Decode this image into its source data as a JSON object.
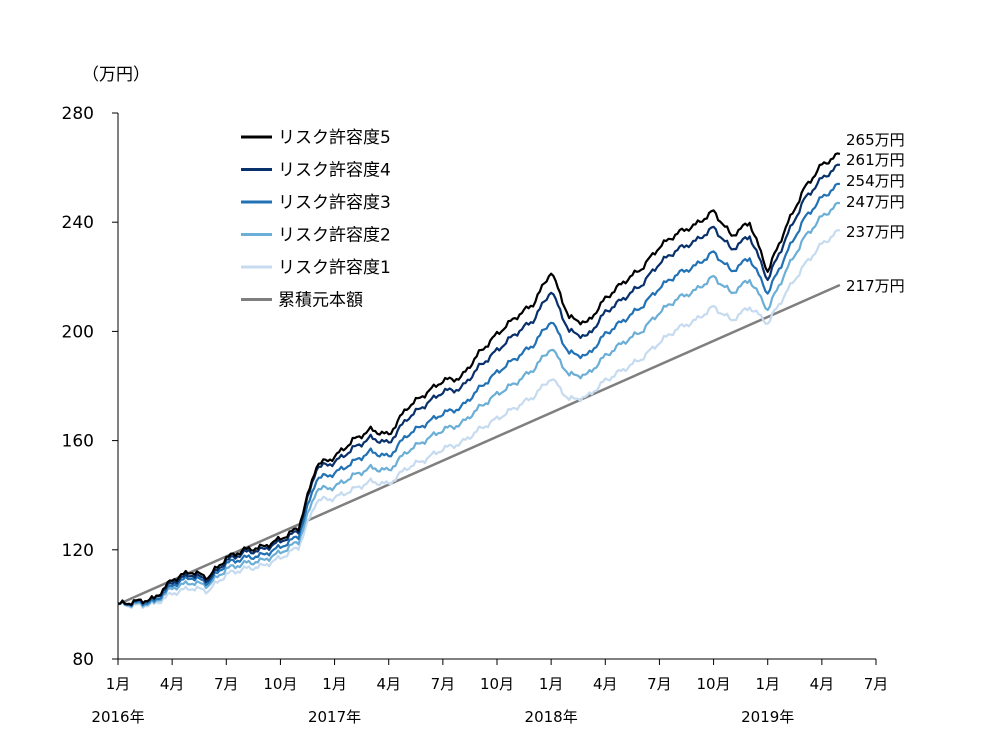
{
  "chart_data": {
    "type": "line",
    "y_unit": "（万円）",
    "ylim": [
      80,
      280
    ],
    "y_ticks": [
      80,
      120,
      160,
      200,
      240,
      280
    ],
    "x_range": [
      "2016-01",
      "2019-07"
    ],
    "x_tick_labels": [
      "1月",
      "4月",
      "7月",
      "10月",
      "1月",
      "4月",
      "7月",
      "10月",
      "1月",
      "4月",
      "7月",
      "10月",
      "1月",
      "4月",
      "7月"
    ],
    "year_labels": [
      "2016年",
      "2017年",
      "2018年",
      "2019年"
    ],
    "grid": false,
    "legend_position": "top-left",
    "series": [
      {
        "name": "リスク許容度5",
        "color": "#000000",
        "end_label": "265万円",
        "points": [
          [
            "2016-01",
            100
          ],
          [
            "2016-02",
            101
          ],
          [
            "2016-03",
            102
          ],
          [
            "2016-04",
            109
          ],
          [
            "2016-05",
            112
          ],
          [
            "2016-06",
            110
          ],
          [
            "2016-07",
            117
          ],
          [
            "2016-08",
            120
          ],
          [
            "2016-09",
            121
          ],
          [
            "2016-10",
            124
          ],
          [
            "2016-11",
            128
          ],
          [
            "2016-12",
            151
          ],
          [
            "2017-01",
            154
          ],
          [
            "2017-02",
            160
          ],
          [
            "2017-03",
            164
          ],
          [
            "2017-04",
            162
          ],
          [
            "2017-05",
            172
          ],
          [
            "2017-06",
            177
          ],
          [
            "2017-07",
            182
          ],
          [
            "2017-08",
            183
          ],
          [
            "2017-09",
            192
          ],
          [
            "2017-10",
            199
          ],
          [
            "2017-11",
            205
          ],
          [
            "2017-12",
            210
          ],
          [
            "2018-01",
            222
          ],
          [
            "2018-02",
            205
          ],
          [
            "2018-03",
            203
          ],
          [
            "2018-04",
            212
          ],
          [
            "2018-05",
            218
          ],
          [
            "2018-06",
            223
          ],
          [
            "2018-07",
            231
          ],
          [
            "2018-08",
            236
          ],
          [
            "2018-09",
            239
          ],
          [
            "2018-10",
            244
          ],
          [
            "2018-11",
            235
          ],
          [
            "2018-12",
            240
          ],
          [
            "2019-01",
            222
          ],
          [
            "2019-02",
            238
          ],
          [
            "2019-03",
            252
          ],
          [
            "2019-04",
            261
          ],
          [
            "2019-05",
            265
          ]
        ]
      },
      {
        "name": "リスク許容度4",
        "color": "#08306b",
        "end_label": "261万円",
        "points": [
          [
            "2016-01",
            100
          ],
          [
            "2016-02",
            101
          ],
          [
            "2016-03",
            102
          ],
          [
            "2016-04",
            108
          ],
          [
            "2016-05",
            111
          ],
          [
            "2016-06",
            109
          ],
          [
            "2016-07",
            116
          ],
          [
            "2016-08",
            119
          ],
          [
            "2016-09",
            120
          ],
          [
            "2016-10",
            123
          ],
          [
            "2016-11",
            127
          ],
          [
            "2016-12",
            150
          ],
          [
            "2017-01",
            152
          ],
          [
            "2017-02",
            157
          ],
          [
            "2017-03",
            161
          ],
          [
            "2017-04",
            159
          ],
          [
            "2017-05",
            168
          ],
          [
            "2017-06",
            173
          ],
          [
            "2017-07",
            178
          ],
          [
            "2017-08",
            179
          ],
          [
            "2017-09",
            187
          ],
          [
            "2017-10",
            193
          ],
          [
            "2017-11",
            199
          ],
          [
            "2017-12",
            204
          ],
          [
            "2018-01",
            215
          ],
          [
            "2018-02",
            200
          ],
          [
            "2018-03",
            198
          ],
          [
            "2018-04",
            207
          ],
          [
            "2018-05",
            212
          ],
          [
            "2018-06",
            217
          ],
          [
            "2018-07",
            225
          ],
          [
            "2018-08",
            230
          ],
          [
            "2018-09",
            233
          ],
          [
            "2018-10",
            238
          ],
          [
            "2018-11",
            230
          ],
          [
            "2018-12",
            235
          ],
          [
            "2019-01",
            219
          ],
          [
            "2019-02",
            234
          ],
          [
            "2019-03",
            248
          ],
          [
            "2019-04",
            256
          ],
          [
            "2019-05",
            261
          ]
        ]
      },
      {
        "name": "リスク許容度3",
        "color": "#2171b5",
        "end_label": "254万円",
        "points": [
          [
            "2016-01",
            100
          ],
          [
            "2016-02",
            100.5
          ],
          [
            "2016-03",
            101
          ],
          [
            "2016-04",
            107
          ],
          [
            "2016-05",
            110
          ],
          [
            "2016-06",
            108
          ],
          [
            "2016-07",
            115
          ],
          [
            "2016-08",
            117
          ],
          [
            "2016-09",
            118
          ],
          [
            "2016-10",
            121
          ],
          [
            "2016-11",
            125
          ],
          [
            "2016-12",
            146
          ],
          [
            "2017-01",
            148
          ],
          [
            "2017-02",
            152
          ],
          [
            "2017-03",
            156
          ],
          [
            "2017-04",
            154
          ],
          [
            "2017-05",
            162
          ],
          [
            "2017-06",
            166
          ],
          [
            "2017-07",
            170
          ],
          [
            "2017-08",
            172
          ],
          [
            "2017-09",
            179
          ],
          [
            "2017-10",
            185
          ],
          [
            "2017-11",
            190
          ],
          [
            "2017-12",
            195
          ],
          [
            "2018-01",
            204
          ],
          [
            "2018-02",
            192
          ],
          [
            "2018-03",
            191
          ],
          [
            "2018-04",
            199
          ],
          [
            "2018-05",
            204
          ],
          [
            "2018-06",
            209
          ],
          [
            "2018-07",
            216
          ],
          [
            "2018-08",
            221
          ],
          [
            "2018-09",
            224
          ],
          [
            "2018-10",
            229
          ],
          [
            "2018-11",
            222
          ],
          [
            "2018-12",
            227
          ],
          [
            "2019-01",
            214
          ],
          [
            "2019-02",
            228
          ],
          [
            "2019-03",
            241
          ],
          [
            "2019-04",
            249
          ],
          [
            "2019-05",
            254
          ]
        ]
      },
      {
        "name": "リスク許容度2",
        "color": "#6baed6",
        "end_label": "247万円",
        "points": [
          [
            "2016-01",
            100
          ],
          [
            "2016-02",
            100
          ],
          [
            "2016-03",
            100.5
          ],
          [
            "2016-04",
            106
          ],
          [
            "2016-05",
            108
          ],
          [
            "2016-06",
            107
          ],
          [
            "2016-07",
            113
          ],
          [
            "2016-08",
            115
          ],
          [
            "2016-09",
            116
          ],
          [
            "2016-10",
            119
          ],
          [
            "2016-11",
            123
          ],
          [
            "2016-12",
            142
          ],
          [
            "2017-01",
            143
          ],
          [
            "2017-02",
            147
          ],
          [
            "2017-03",
            150
          ],
          [
            "2017-04",
            149
          ],
          [
            "2017-05",
            156
          ],
          [
            "2017-06",
            160
          ],
          [
            "2017-07",
            164
          ],
          [
            "2017-08",
            166
          ],
          [
            "2017-09",
            172
          ],
          [
            "2017-10",
            177
          ],
          [
            "2017-11",
            181
          ],
          [
            "2017-12",
            186
          ],
          [
            "2018-01",
            194
          ],
          [
            "2018-02",
            184
          ],
          [
            "2018-03",
            184
          ],
          [
            "2018-04",
            191
          ],
          [
            "2018-05",
            196
          ],
          [
            "2018-06",
            200
          ],
          [
            "2018-07",
            207
          ],
          [
            "2018-08",
            212
          ],
          [
            "2018-09",
            215
          ],
          [
            "2018-10",
            220
          ],
          [
            "2018-11",
            214
          ],
          [
            "2018-12",
            219
          ],
          [
            "2019-01",
            208
          ],
          [
            "2019-02",
            222
          ],
          [
            "2019-03",
            234
          ],
          [
            "2019-04",
            242
          ],
          [
            "2019-05",
            247
          ]
        ]
      },
      {
        "name": "リスク許容度1",
        "color": "#c6dbef",
        "end_label": "237万円",
        "points": [
          [
            "2016-01",
            100
          ],
          [
            "2016-02",
            99.5
          ],
          [
            "2016-03",
            100
          ],
          [
            "2016-04",
            104
          ],
          [
            "2016-05",
            106
          ],
          [
            "2016-06",
            105
          ],
          [
            "2016-07",
            111
          ],
          [
            "2016-08",
            113
          ],
          [
            "2016-09",
            114
          ],
          [
            "2016-10",
            117
          ],
          [
            "2016-11",
            121
          ],
          [
            "2016-12",
            138
          ],
          [
            "2017-01",
            139
          ],
          [
            "2017-02",
            142
          ],
          [
            "2017-03",
            145
          ],
          [
            "2017-04",
            144
          ],
          [
            "2017-05",
            150
          ],
          [
            "2017-06",
            153
          ],
          [
            "2017-07",
            157
          ],
          [
            "2017-08",
            159
          ],
          [
            "2017-09",
            164
          ],
          [
            "2017-10",
            168
          ],
          [
            "2017-11",
            172
          ],
          [
            "2017-12",
            176
          ],
          [
            "2018-01",
            183
          ],
          [
            "2018-02",
            175
          ],
          [
            "2018-03",
            176
          ],
          [
            "2018-04",
            182
          ],
          [
            "2018-05",
            186
          ],
          [
            "2018-06",
            190
          ],
          [
            "2018-07",
            196
          ],
          [
            "2018-08",
            201
          ],
          [
            "2018-09",
            204
          ],
          [
            "2018-10",
            209
          ],
          [
            "2018-11",
            204
          ],
          [
            "2018-12",
            209
          ],
          [
            "2019-01",
            203
          ],
          [
            "2019-02",
            214
          ],
          [
            "2019-03",
            224
          ],
          [
            "2019-04",
            232
          ],
          [
            "2019-05",
            237
          ]
        ]
      },
      {
        "name": "累積元本額",
        "color": "#7f7f7f",
        "end_label": "217万円",
        "points": [
          [
            "2016-01",
            100
          ],
          [
            "2019-05",
            217
          ]
        ]
      }
    ]
  }
}
